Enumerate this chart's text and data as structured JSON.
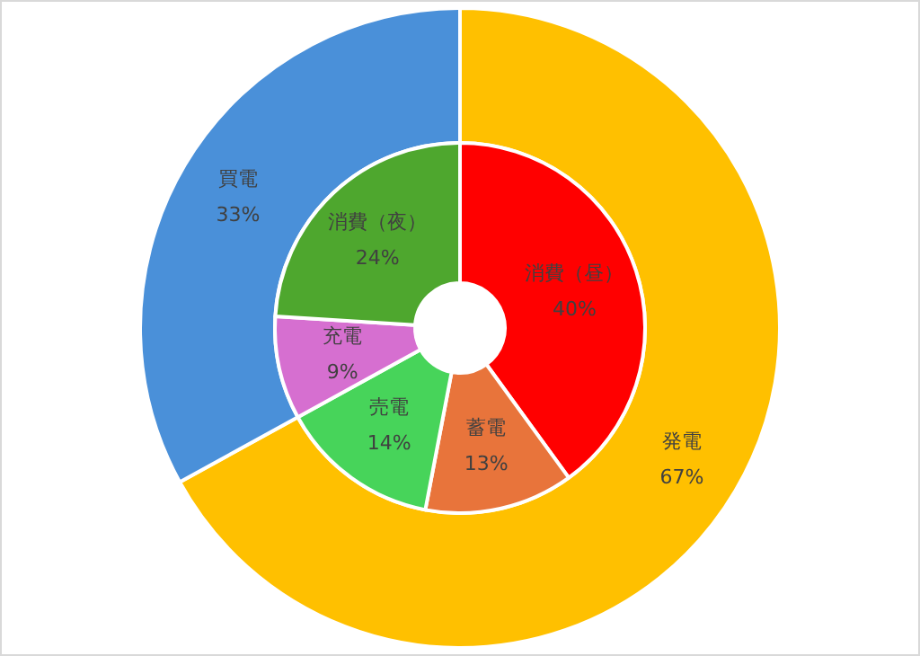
{
  "chart_data": [
    {
      "type": "donut",
      "categories": [
        "発電",
        "買電"
      ],
      "values": [
        67,
        33
      ],
      "value_labels": [
        "67%",
        "33%"
      ],
      "colors": [
        "#ffc000",
        "#4a90d9"
      ]
    },
    {
      "type": "donut",
      "categories": [
        "消費（昼）",
        "蓄電",
        "売電",
        "充電",
        "消費（夜）"
      ],
      "values": [
        40,
        13,
        14,
        9,
        24
      ],
      "value_labels": [
        "40%",
        "13%",
        "14%",
        "9%",
        "24%"
      ],
      "colors": [
        "#ff0000",
        "#e8743b",
        "#47d45a",
        "#d66fd0",
        "#4ea72e"
      ]
    }
  ]
}
